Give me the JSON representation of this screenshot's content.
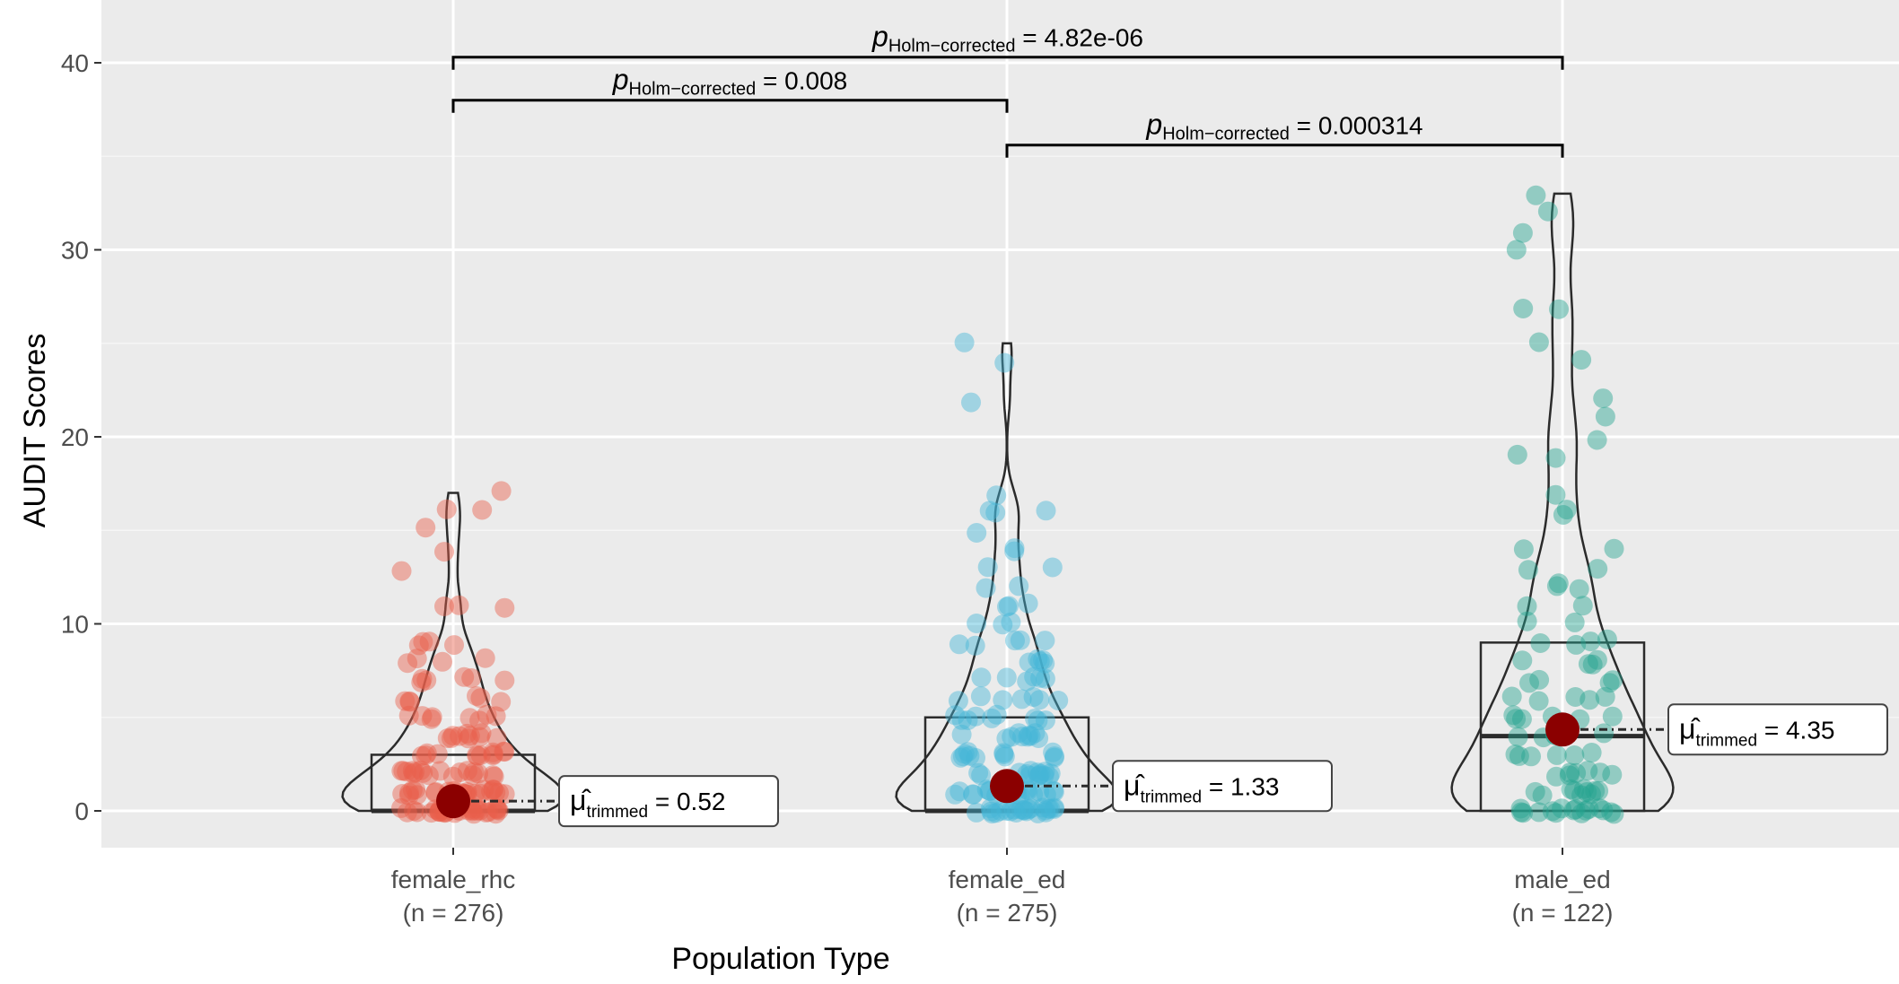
{
  "chart_data": {
    "type": "violin-box-scatter",
    "xlabel": "Population Type",
    "ylabel": "AUDIT Scores",
    "ylim": [
      -2,
      42
    ],
    "yticks": [
      0,
      10,
      20,
      30,
      40
    ],
    "grid": true,
    "categories": [
      {
        "name": "female_rhc",
        "n_label": "(n = 276)",
        "color": "#e8604c",
        "box": {
          "q1": 0,
          "median": 0,
          "q3": 3
        },
        "mean": 0.52,
        "mean_label": "0.52",
        "max": 17,
        "points": [
          0,
          0,
          0,
          0,
          0,
          0,
          0,
          0,
          0,
          0,
          0,
          0,
          0,
          0,
          0,
          0,
          0,
          0,
          0,
          0,
          0,
          0,
          0,
          0,
          0,
          0,
          0,
          0,
          0,
          0,
          1,
          1,
          1,
          1,
          1,
          1,
          1,
          1,
          1,
          1,
          1,
          1,
          1,
          1,
          1,
          1,
          1,
          1,
          1,
          1,
          1,
          1,
          1,
          1,
          2,
          2,
          2,
          2,
          2,
          2,
          2,
          2,
          2,
          2,
          2,
          2,
          2,
          2,
          2,
          2,
          2,
          2,
          3,
          3,
          3,
          3,
          3,
          3,
          3,
          3,
          3,
          3,
          3,
          3,
          4,
          4,
          4,
          4,
          4,
          4,
          4,
          4,
          4,
          4,
          5,
          5,
          5,
          5,
          5,
          5,
          5,
          5,
          6,
          6,
          6,
          6,
          6,
          6,
          7,
          7,
          7,
          7,
          7,
          7,
          8,
          8,
          8,
          8,
          9,
          9,
          9,
          9,
          11,
          11,
          11,
          13,
          14,
          15,
          16,
          16,
          17
        ]
      },
      {
        "name": "female_ed",
        "n_label": "(n = 275)",
        "color": "#45b5d6",
        "box": {
          "q1": 0,
          "median": 0,
          "q3": 5
        },
        "mean": 1.33,
        "mean_label": "1.33",
        "max": 25,
        "points": [
          0,
          0,
          0,
          0,
          0,
          0,
          0,
          0,
          0,
          0,
          0,
          0,
          0,
          0,
          0,
          0,
          0,
          0,
          0,
          0,
          0,
          0,
          0,
          0,
          1,
          1,
          1,
          1,
          1,
          1,
          1,
          1,
          1,
          1,
          1,
          1,
          1,
          1,
          1,
          1,
          1,
          1,
          2,
          2,
          2,
          2,
          2,
          2,
          2,
          2,
          2,
          2,
          2,
          2,
          2,
          2,
          3,
          3,
          3,
          3,
          3,
          3,
          3,
          3,
          3,
          3,
          3,
          3,
          4,
          4,
          4,
          4,
          4,
          4,
          4,
          4,
          4,
          4,
          5,
          5,
          5,
          5,
          5,
          5,
          5,
          5,
          5,
          6,
          6,
          6,
          6,
          6,
          6,
          6,
          7,
          7,
          7,
          7,
          7,
          7,
          8,
          8,
          8,
          8,
          8,
          9,
          9,
          9,
          9,
          9,
          10,
          10,
          10,
          11,
          11,
          11,
          12,
          12,
          13,
          13,
          14,
          14,
          15,
          16,
          16,
          16,
          17,
          22,
          24,
          25
        ]
      },
      {
        "name": "male_ed",
        "n_label": "(n = 122)",
        "color": "#26a391",
        "box": {
          "q1": 0,
          "median": 4,
          "q3": 9
        },
        "mean": 4.35,
        "mean_label": "4.35",
        "max": 33,
        "points": [
          0,
          0,
          0,
          0,
          0,
          0,
          0,
          0,
          0,
          0,
          0,
          0,
          0,
          0,
          0,
          0,
          1,
          1,
          1,
          1,
          1,
          1,
          1,
          1,
          1,
          1,
          2,
          2,
          2,
          2,
          2,
          2,
          2,
          3,
          3,
          3,
          3,
          3,
          3,
          4,
          4,
          4,
          4,
          4,
          4,
          4,
          5,
          5,
          5,
          5,
          5,
          5,
          6,
          6,
          6,
          6,
          6,
          7,
          7,
          7,
          7,
          8,
          8,
          8,
          8,
          9,
          9,
          9,
          9,
          10,
          10,
          11,
          11,
          12,
          12,
          12,
          13,
          13,
          14,
          14,
          16,
          16,
          17,
          19,
          19,
          20,
          21,
          22,
          24,
          25,
          27,
          27,
          30,
          31,
          32,
          33
        ]
      }
    ],
    "mean_symbol_subscript": "trimmed",
    "comparisons": [
      {
        "from": 0,
        "to": 2,
        "y": 40.3,
        "p_label": "p",
        "p_subscript": "Holm−corrected",
        "p_value": "= 4.82e-06"
      },
      {
        "from": 0,
        "to": 1,
        "y": 38.0,
        "p_label": "p",
        "p_subscript": "Holm−corrected",
        "p_value": "= 0.008"
      },
      {
        "from": 1,
        "to": 2,
        "y": 35.6,
        "p_label": "p",
        "p_subscript": "Holm−corrected",
        "p_value": "= 0.000314"
      }
    ]
  }
}
